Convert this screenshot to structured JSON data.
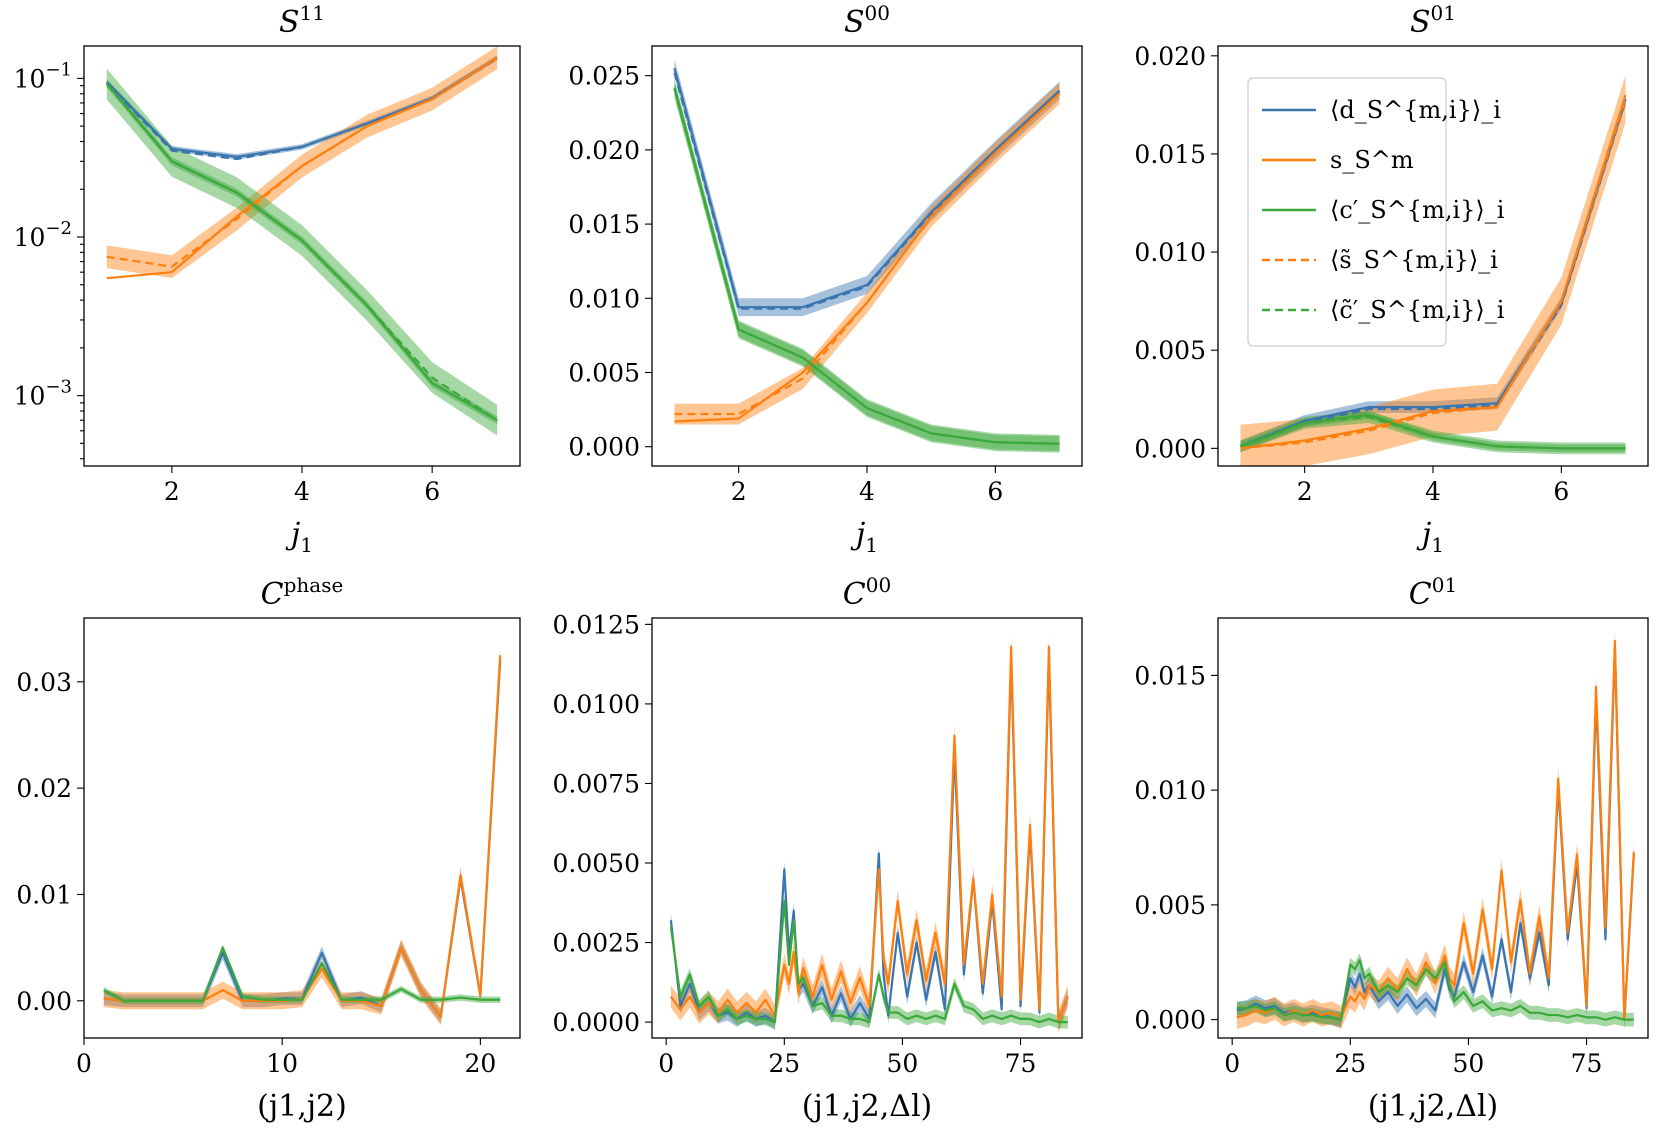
{
  "colors": {
    "blue": "#3a75b0",
    "orange": "#ff7f0e",
    "green": "#3aa83a"
  },
  "legend": {
    "entries": [
      {
        "label": "⟨d_S^{m,i}⟩_i",
        "color": "#3a75b0",
        "style": "solid"
      },
      {
        "label": "s_S^m",
        "color": "#ff7f0e",
        "style": "solid"
      },
      {
        "label": "⟨c′_S^{m,i}⟩_i",
        "color": "#3aa83a",
        "style": "solid"
      },
      {
        "label": "⟨s̃_S^{m,i}⟩_i",
        "color": "#ff7f0e",
        "style": "dashed"
      },
      {
        "label": "⟨c̃′_S^{m,i}⟩_i",
        "color": "#3aa83a",
        "style": "dashed"
      }
    ]
  },
  "chart_data": [
    {
      "id": "S11",
      "type": "line",
      "title_base": "S",
      "title_sup": "11",
      "xlabel": "j",
      "xlabel_sub": "1",
      "xlim": [
        0.65,
        7.35
      ],
      "yscale": "log",
      "ylim": [
        0.00036,
        0.16
      ],
      "xticks": [
        2,
        4,
        6
      ],
      "yticks": [
        0.1,
        0.01,
        0.001
      ],
      "ytick_labels": [
        {
          "base": "10",
          "exp": "−1"
        },
        {
          "base": "10",
          "exp": "−2"
        },
        {
          "base": "10",
          "exp": "−3"
        }
      ],
      "x": [
        1,
        2,
        3,
        4,
        5,
        6,
        7
      ],
      "series": [
        {
          "color": "#3a75b0",
          "style": "solid",
          "values": [
            0.095,
            0.036,
            0.032,
            0.037,
            0.052,
            0.075,
            0.135
          ],
          "band": 0.04
        },
        {
          "color": "#3a75b0",
          "style": "dashed",
          "values": [
            0.093,
            0.035,
            0.031,
            0.037,
            0.052,
            0.074,
            0.134
          ],
          "band": 0.0
        },
        {
          "color": "#ff7f0e",
          "style": "solid",
          "values": [
            0.0055,
            0.006,
            0.0135,
            0.028,
            0.05,
            0.074,
            0.135
          ],
          "band": 0.0
        },
        {
          "color": "#ff7f0e",
          "style": "dashed",
          "values": [
            0.0075,
            0.0065,
            0.013,
            0.028,
            0.05,
            0.074,
            0.135
          ],
          "band": 0.18
        },
        {
          "color": "#3aa83a",
          "style": "solid",
          "values": [
            0.093,
            0.03,
            0.019,
            0.0095,
            0.0037,
            0.0012,
            0.0007
          ],
          "band": 0.06
        },
        {
          "color": "#3aa83a",
          "style": "dashed",
          "values": [
            0.092,
            0.03,
            0.019,
            0.0095,
            0.0037,
            0.0013,
            0.0007
          ],
          "band": 0.25
        }
      ]
    },
    {
      "id": "S00",
      "type": "line",
      "title_base": "S",
      "title_sup": "00",
      "xlabel": "j",
      "xlabel_sub": "1",
      "xlim": [
        0.65,
        7.35
      ],
      "yscale": "linear",
      "ylim": [
        -0.0013,
        0.027
      ],
      "xticks": [
        2,
        4,
        6
      ],
      "yticks": [
        0,
        0.005,
        0.01,
        0.015,
        0.02,
        0.025
      ],
      "ytick_text": [
        "0.000",
        "0.005",
        "0.010",
        "0.015",
        "0.020",
        "0.025"
      ],
      "x": [
        1,
        2,
        3,
        4,
        5,
        6,
        7
      ],
      "series": [
        {
          "color": "#3a75b0",
          "style": "solid",
          "values": [
            0.0255,
            0.0094,
            0.0094,
            0.0109,
            0.0158,
            0.02,
            0.024
          ],
          "band": 0.0006
        },
        {
          "color": "#3a75b0",
          "style": "dashed",
          "values": [
            0.0252,
            0.0093,
            0.0093,
            0.0108,
            0.0157,
            0.0199,
            0.0239
          ],
          "band": 0.0
        },
        {
          "color": "#ff7f0e",
          "style": "solid",
          "values": [
            0.0017,
            0.0019,
            0.005,
            0.0097,
            0.0155,
            0.0198,
            0.0238
          ],
          "band": 0.0
        },
        {
          "color": "#ff7f0e",
          "style": "dashed",
          "values": [
            0.0022,
            0.0022,
            0.0046,
            0.0097,
            0.0155,
            0.0198,
            0.0238
          ],
          "band": 0.0007
        },
        {
          "color": "#3aa83a",
          "style": "solid",
          "values": [
            0.0242,
            0.0079,
            0.006,
            0.0026,
            0.0009,
            0.0003,
            0.0002
          ],
          "band": 0.0005
        },
        {
          "color": "#3aa83a",
          "style": "dashed",
          "values": [
            0.0241,
            0.0079,
            0.006,
            0.0026,
            0.0009,
            0.0003,
            0.0002
          ],
          "band": 0.0006
        }
      ]
    },
    {
      "id": "S01",
      "type": "line",
      "title_base": "S",
      "title_sup": "01",
      "xlabel": "j",
      "xlabel_sub": "1",
      "xlim": [
        0.65,
        7.35
      ],
      "yscale": "linear",
      "ylim": [
        -0.0009,
        0.0205
      ],
      "xticks": [
        2,
        4,
        6
      ],
      "yticks": [
        0,
        0.005,
        0.01,
        0.015,
        0.02
      ],
      "ytick_text": [
        "0.000",
        "0.005",
        "0.010",
        "0.015",
        "0.020"
      ],
      "legend": true,
      "x": [
        1,
        2,
        3,
        4,
        5,
        6,
        7
      ],
      "series": [
        {
          "color": "#3a75b0",
          "style": "solid",
          "values": [
            0.0001,
            0.0014,
            0.0021,
            0.0021,
            0.0023,
            0.0074,
            0.0178
          ],
          "band": 0.0003
        },
        {
          "color": "#3a75b0",
          "style": "dashed",
          "values": [
            0.0001,
            0.0013,
            0.002,
            0.002,
            0.0022,
            0.0073,
            0.0177
          ],
          "band": 0.0
        },
        {
          "color": "#ff7f0e",
          "style": "solid",
          "values": [
            0.0,
            0.0004,
            0.001,
            0.0019,
            0.0021,
            0.0075,
            0.018
          ],
          "band": 0.0
        },
        {
          "color": "#ff7f0e",
          "style": "dashed",
          "values": [
            0.0,
            0.0003,
            0.0009,
            0.0018,
            0.0021,
            0.0075,
            0.0178
          ],
          "band": 0.0012
        },
        {
          "color": "#3aa83a",
          "style": "solid",
          "values": [
            0.0001,
            0.0013,
            0.0017,
            0.0006,
            0.0001,
            0.0,
            0.0
          ],
          "band": 0.0002
        },
        {
          "color": "#3aa83a",
          "style": "dashed",
          "values": [
            0.0001,
            0.0013,
            0.0016,
            0.0006,
            0.0001,
            0.0,
            0.0
          ],
          "band": 0.0003
        }
      ]
    },
    {
      "id": "Cphase",
      "type": "line",
      "title_base": "C",
      "title_sup": "phase",
      "xlabel": "(j1,j2)",
      "xlim": [
        0,
        22
      ],
      "yscale": "linear",
      "ylim": [
        -0.0035,
        0.036
      ],
      "xticks": [
        0,
        10,
        20
      ],
      "xtick_text": [
        "0",
        "10",
        "20"
      ],
      "yticks": [
        0,
        0.01,
        0.02,
        0.03
      ],
      "ytick_text": [
        "0.00",
        "0.01",
        "0.02",
        "0.03"
      ],
      "x": [
        1,
        2,
        3,
        4,
        5,
        6,
        7,
        8,
        9,
        10,
        11,
        12,
        13,
        14,
        15,
        16,
        17,
        18,
        19,
        20,
        21
      ],
      "series": [
        {
          "color": "#3a75b0",
          "style": "solid",
          "values": [
            0.0002,
            0.0,
            0.0,
            0.0,
            0.0,
            0.0,
            0.0045,
            0.0,
            0.0,
            0.0002,
            0.0002,
            0.0045,
            0.0,
            0.0003,
            -0.0005,
            0.005,
            0.001,
            -0.0015,
            0.0115,
            0.0005,
            0.032
          ],
          "band": 0.0006
        },
        {
          "color": "#ff7f0e",
          "style": "solid",
          "values": [
            0.0002,
            0.0,
            0.0,
            0.0,
            0.0,
            0.0,
            0.001,
            0.0,
            0.0,
            0.0,
            0.0002,
            0.003,
            0.0,
            0.0,
            -0.0005,
            0.005,
            0.001,
            -0.0015,
            0.0118,
            0.0005,
            0.0325
          ],
          "band": 0.0008
        },
        {
          "color": "#3aa83a",
          "style": "solid",
          "values": [
            0.001,
            0.0,
            0.0,
            0.0,
            0.0,
            0.0,
            0.005,
            0.0004,
            0.0001,
            0.0001,
            0.0001,
            0.0035,
            0.0001,
            0.0001,
            0.0001,
            0.0011,
            0.0001,
            0.0001,
            0.0003,
            0.0001,
            0.0001
          ],
          "band": 0.0003
        }
      ]
    },
    {
      "id": "C00",
      "type": "line",
      "title_base": "C",
      "title_sup": "00",
      "xlabel": "(j1,j2,Δl)",
      "xlim": [
        -3,
        88
      ],
      "yscale": "linear",
      "ylim": [
        -0.0005,
        0.0127
      ],
      "xticks": [
        0,
        25,
        50,
        75
      ],
      "xtick_text": [
        "0",
        "25",
        "50",
        "75"
      ],
      "yticks": [
        0,
        0.0025,
        0.005,
        0.0075,
        0.01,
        0.0125
      ],
      "ytick_text": [
        "0.0000",
        "0.0025",
        "0.0050",
        "0.0075",
        "0.0100",
        "0.0125"
      ],
      "x": [
        1,
        3,
        5,
        7,
        9,
        11,
        13,
        15,
        17,
        19,
        21,
        23,
        25,
        26,
        27,
        28,
        29,
        31,
        33,
        35,
        37,
        39,
        41,
        43,
        45,
        46,
        47,
        49,
        51,
        53,
        55,
        57,
        59,
        61,
        63,
        65,
        67,
        69,
        71,
        73,
        75,
        77,
        79,
        81,
        83,
        85
      ],
      "series": [
        {
          "color": "#3a75b0",
          "style": "solid",
          "values": [
            0.0032,
            0.0005,
            0.0012,
            0.0003,
            0.0006,
            0.0002,
            0.0003,
            0.0001,
            0.0003,
            0.0001,
            0.0002,
            0.0,
            0.0048,
            0.0022,
            0.0035,
            0.001,
            0.0012,
            0.0005,
            0.0011,
            0.0002,
            0.0009,
            0.0001,
            0.0006,
            0.0001,
            0.0053,
            0.0015,
            0.0002,
            0.0028,
            0.0008,
            0.0025,
            0.0007,
            0.0022,
            0.0004,
            0.0085,
            0.0015,
            0.0045,
            0.0009,
            0.0038,
            0.0004,
            0.0115,
            0.0005,
            0.006,
            0.0003,
            0.0115,
            0.0,
            0.0008
          ],
          "band": 0.00025
        },
        {
          "color": "#ff7f0e",
          "style": "solid",
          "values": [
            0.0008,
            0.0004,
            0.0008,
            0.0003,
            0.0006,
            0.0003,
            0.0007,
            0.0003,
            0.0006,
            0.0003,
            0.0007,
            0.0002,
            0.0018,
            0.0012,
            0.0022,
            0.0009,
            0.0017,
            0.0008,
            0.0018,
            0.0007,
            0.0016,
            0.0006,
            0.0014,
            0.0005,
            0.0048,
            0.002,
            0.0012,
            0.0038,
            0.0015,
            0.0032,
            0.0013,
            0.0028,
            0.0012,
            0.009,
            0.0018,
            0.0045,
            0.0012,
            0.004,
            0.0008,
            0.0118,
            0.0007,
            0.0062,
            0.0004,
            0.0118,
            0.0,
            0.0008
          ],
          "band": 0.00035
        },
        {
          "color": "#3aa83a",
          "style": "solid",
          "values": [
            0.003,
            0.0008,
            0.0015,
            0.0005,
            0.0008,
            0.0002,
            0.0004,
            0.0001,
            0.0002,
            0.0001,
            0.0001,
            0.0,
            0.0038,
            0.0018,
            0.0032,
            0.0012,
            0.0014,
            0.0005,
            0.0006,
            0.0002,
            0.0002,
            0.0001,
            0.0001,
            0.0,
            0.0015,
            0.0008,
            0.0003,
            0.0003,
            0.0001,
            0.0002,
            0.0001,
            0.0002,
            0.0001,
            0.0012,
            0.0005,
            0.0004,
            0.0001,
            0.0002,
            0.0001,
            0.0002,
            0.0001,
            0.0001,
            0.0,
            0.0001,
            0.0,
            0.0
          ],
          "band": 0.0002
        }
      ]
    },
    {
      "id": "C01",
      "type": "line",
      "title_base": "C",
      "title_sup": "01",
      "xlabel": "(j1,j2,Δl)",
      "xlim": [
        -3,
        88
      ],
      "yscale": "linear",
      "ylim": [
        -0.0008,
        0.0175
      ],
      "xticks": [
        0,
        25,
        50,
        75
      ],
      "xtick_text": [
        "0",
        "25",
        "50",
        "75"
      ],
      "yticks": [
        0,
        0.005,
        0.01,
        0.015
      ],
      "ytick_text": [
        "0.000",
        "0.005",
        "0.010",
        "0.015"
      ],
      "x": [
        1,
        3,
        5,
        7,
        9,
        11,
        13,
        15,
        17,
        19,
        21,
        23,
        25,
        26,
        27,
        28,
        29,
        31,
        33,
        35,
        37,
        39,
        41,
        43,
        45,
        46,
        47,
        49,
        51,
        53,
        55,
        57,
        59,
        61,
        63,
        65,
        67,
        69,
        71,
        73,
        75,
        77,
        79,
        81,
        83,
        85
      ],
      "series": [
        {
          "color": "#3a75b0",
          "style": "solid",
          "values": [
            0.0004,
            0.0005,
            0.0007,
            0.0005,
            0.0006,
            0.0003,
            0.0004,
            0.0002,
            0.0003,
            0.0002,
            0.0001,
            0.0,
            0.0018,
            0.0014,
            0.002,
            0.0012,
            0.0015,
            0.0008,
            0.0012,
            0.0006,
            0.0011,
            0.0005,
            0.0009,
            0.0004,
            0.0022,
            0.0013,
            0.001,
            0.0025,
            0.0012,
            0.0028,
            0.001,
            0.0035,
            0.0012,
            0.0042,
            0.0018,
            0.0038,
            0.0015,
            0.0102,
            0.0035,
            0.0068,
            0.0005,
            0.014,
            0.0035,
            0.0162,
            0.0,
            0.0072
          ],
          "band": 0.00035
        },
        {
          "color": "#ff7f0e",
          "style": "solid",
          "values": [
            0.0001,
            0.0002,
            0.0004,
            0.0003,
            0.0005,
            0.0002,
            0.0004,
            0.0002,
            0.0004,
            0.0002,
            0.0003,
            0.0001,
            0.001,
            0.0008,
            0.0012,
            0.0009,
            0.0015,
            0.0012,
            0.0018,
            0.0013,
            0.0022,
            0.0015,
            0.0025,
            0.0016,
            0.0028,
            0.0018,
            0.0015,
            0.0042,
            0.002,
            0.0048,
            0.0022,
            0.0065,
            0.0025,
            0.0052,
            0.002,
            0.0045,
            0.0018,
            0.0105,
            0.0038,
            0.0072,
            0.0006,
            0.0145,
            0.004,
            0.0165,
            0.0,
            0.0073
          ],
          "band": 0.0005
        },
        {
          "color": "#3aa83a",
          "style": "solid",
          "values": [
            0.0005,
            0.0005,
            0.0006,
            0.0004,
            0.0005,
            0.0002,
            0.0003,
            0.0002,
            0.0002,
            0.0001,
            0.0001,
            0.0,
            0.0024,
            0.0022,
            0.0026,
            0.0018,
            0.002,
            0.0012,
            0.0015,
            0.0012,
            0.0018,
            0.0015,
            0.0022,
            0.0018,
            0.0025,
            0.0015,
            0.0008,
            0.0012,
            0.0006,
            0.0008,
            0.0004,
            0.0005,
            0.0004,
            0.0006,
            0.0003,
            0.0003,
            0.0002,
            0.0002,
            0.0001,
            0.0002,
            0.0001,
            0.0001,
            0.0,
            0.0001,
            0.0,
            0.0
          ],
          "band": 0.0003
        }
      ]
    }
  ]
}
